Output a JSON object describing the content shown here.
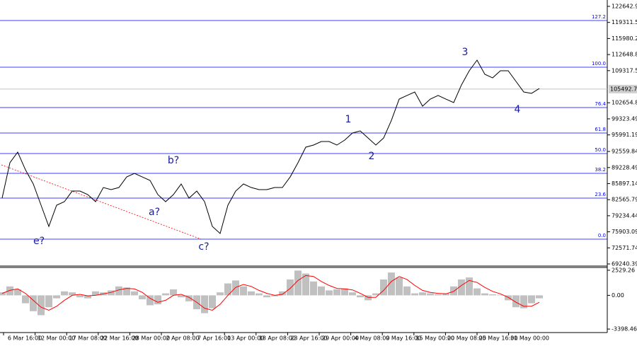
{
  "chart_data": [
    {
      "type": "line",
      "color": "#000000",
      "values": [
        82880,
        90220,
        92420,
        88750,
        85820,
        81420,
        77020,
        81420,
        82150,
        84350,
        84350,
        83620,
        82150,
        85080,
        84640,
        85080,
        87280,
        88020,
        87280,
        86550,
        83620,
        82150,
        83620,
        85820,
        82880,
        84350,
        82150,
        77020,
        75550,
        81420,
        84350,
        85820,
        85080,
        84640,
        84640,
        85080,
        85080,
        87280,
        90220,
        93450,
        93890,
        94620,
        94620,
        93890,
        94910,
        96380,
        96820,
        95350,
        93890,
        95350,
        99020,
        103420,
        104160,
        104890,
        101950,
        103420,
        104160,
        103420,
        102690,
        106360,
        109290,
        111490,
        108560,
        107820,
        109290,
        109290,
        107090,
        104890,
        104600,
        105620
      ],
      "ylim": [
        68950,
        123960
      ],
      "yticks": [
        122642.94,
        119311.59,
        115980.21,
        112648.89,
        109317.54,
        102654.84,
        99323.49,
        95991.19,
        92559.84,
        89228.49,
        85897.14,
        82565.79,
        79234.44,
        75903.09,
        72571.74,
        69240.39
      ],
      "levels": [
        {
          "name": "127.2",
          "value": 119705
        },
        {
          "name": "100.0",
          "value": 110023
        },
        {
          "name": "76.4",
          "value": 101661
        },
        {
          "name": "61.8",
          "value": 96380
        },
        {
          "name": "50.0",
          "value": 92125
        },
        {
          "name": "38.2",
          "value": 88018
        },
        {
          "name": "23.6",
          "value": 82883
        },
        {
          "name": "0.0",
          "value": 74375
        }
      ],
      "level_color": "#0000ff",
      "last_price": 105492.73,
      "annotations": [
        "3",
        "1",
        "2",
        "4",
        "b?",
        "a?",
        "e?",
        "c?"
      ],
      "x_labels": [
        "6 Mar 16:00",
        "12 Mar 00:00",
        "17 Mar 08:00",
        "22 Mar 16:00",
        "28 Mar 00:00",
        "2 Apr 08:00",
        "7 Apr 16:00",
        "13 Apr 00:00",
        "18 Apr 08:00",
        "23 Apr 16:00",
        "29 Apr 00:00",
        "4 May 08:00",
        "9 May 16:00",
        "15 May 00:00",
        "20 May 08:00",
        "25 May 16:00",
        "31 May 00:00"
      ]
    },
    {
      "type": "bar",
      "color": "#c0c0c0",
      "values": [
        300,
        900,
        600,
        -800,
        -1600,
        -2000,
        -1200,
        -300,
        400,
        300,
        -200,
        -300,
        400,
        300,
        500,
        900,
        800,
        400,
        -400,
        -1000,
        -900,
        200,
        600,
        -200,
        -600,
        -1400,
        -1800,
        -1300,
        300,
        1200,
        1500,
        900,
        400,
        200,
        -200,
        -100,
        400,
        1600,
        2500,
        2200,
        1400,
        900,
        500,
        600,
        700,
        300,
        -200,
        -500,
        200,
        1600,
        2300,
        1800,
        900,
        200,
        300,
        200,
        100,
        200,
        900,
        1600,
        1800,
        700,
        200,
        100,
        50,
        -500,
        -1200,
        -1300,
        -800,
        -300
      ],
      "signal": {
        "color": "#ff0000",
        "values": [
          200,
          500,
          650,
          200,
          -500,
          -1200,
          -1500,
          -1100,
          -500,
          0,
          100,
          -50,
          0,
          150,
          300,
          550,
          700,
          650,
          300,
          -300,
          -700,
          -500,
          0,
          100,
          -200,
          -700,
          -1300,
          -1500,
          -900,
          0,
          800,
          1100,
          900,
          500,
          200,
          0,
          100,
          700,
          1500,
          2000,
          1900,
          1400,
          1000,
          700,
          650,
          550,
          200,
          -200,
          -200,
          500,
          1400,
          1900,
          1600,
          1000,
          500,
          300,
          200,
          150,
          400,
          1000,
          1500,
          1300,
          800,
          400,
          150,
          -200,
          -700,
          -1100,
          -1100,
          -700
        ]
      },
      "ylim": [
        -3750,
        2810
      ],
      "yticks": [
        2529.26,
        {
          "value": 0,
          "label": "0.00"
        },
        -3398.46
      ]
    }
  ]
}
